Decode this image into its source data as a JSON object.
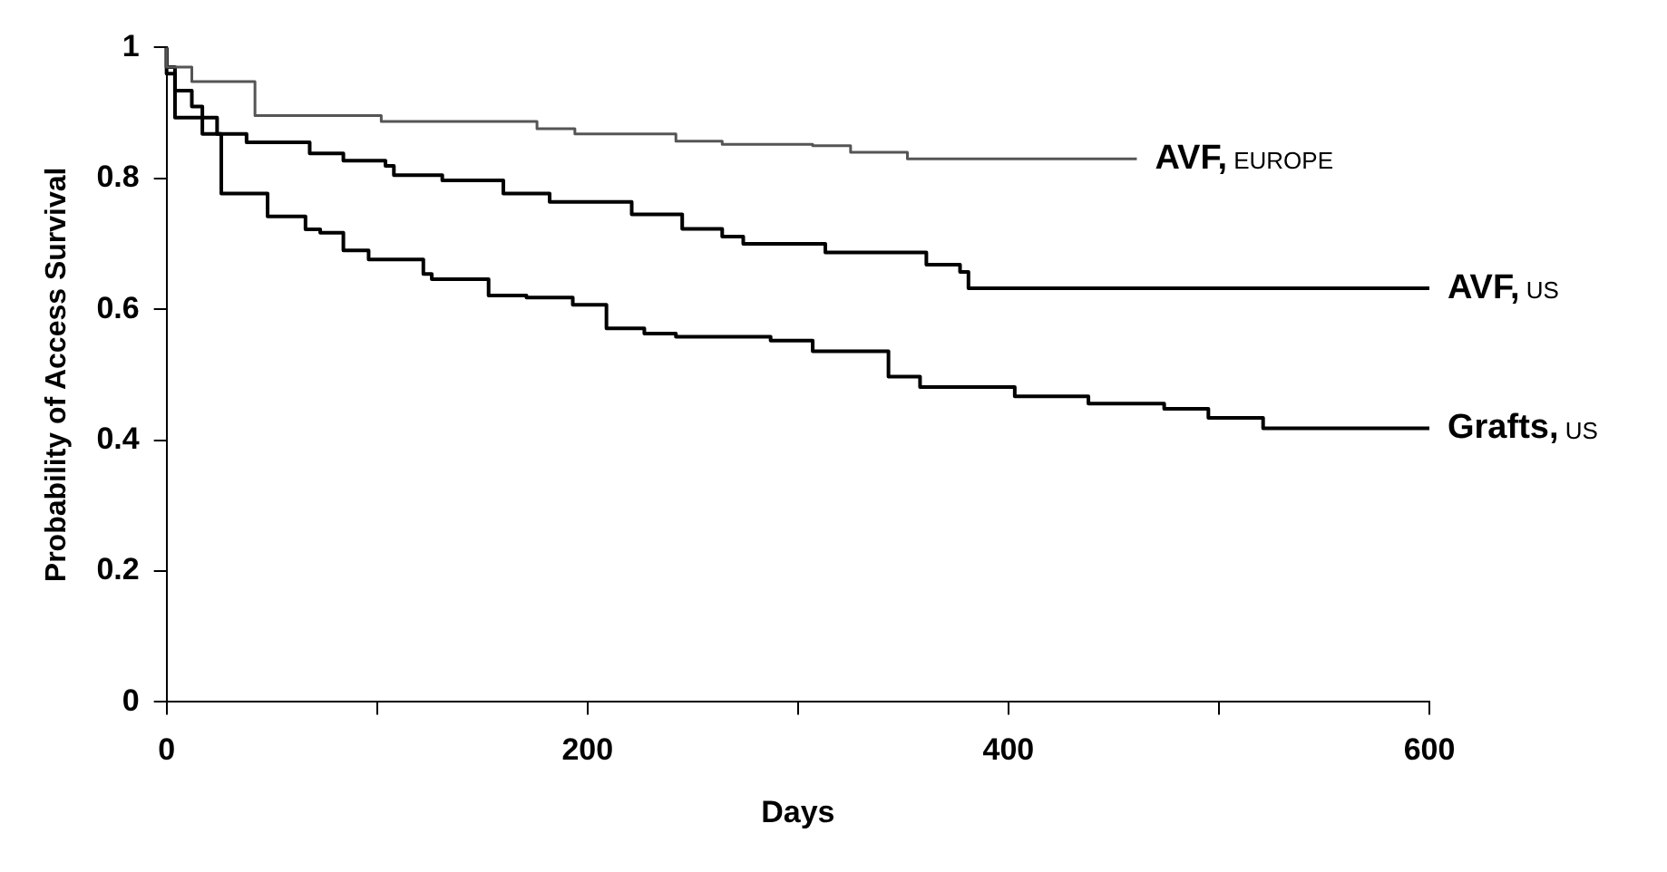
{
  "chart_data": {
    "type": "step",
    "xlabel": "Days",
    "ylabel": "Probability of Access Survival",
    "xlim": [
      0,
      600
    ],
    "xticks": [
      0,
      {
        "value": 100,
        "label": null
      },
      200,
      {
        "value": 300,
        "label": null
      },
      400,
      {
        "value": 500,
        "label": null
      },
      600
    ],
    "ylim": [
      0,
      1
    ],
    "yticks": [
      0,
      0.2,
      0.4,
      0.6,
      0.8,
      1
    ],
    "grid": false,
    "legend": false,
    "series": [
      {
        "name": "AVF, EUROPE",
        "color": "#555555",
        "x": [
          0,
          12,
          42,
          102,
          176,
          194,
          242,
          264,
          307,
          325,
          352,
          367,
          461
        ],
        "values": [
          1,
          0.97,
          0.948,
          0.896,
          0.887,
          0.876,
          0.868,
          0.857,
          0.852,
          0.85,
          0.84,
          0.83,
          0.83
        ]
      },
      {
        "name": "AVF, US",
        "color": "#000000",
        "x": [
          0,
          4,
          24,
          38,
          68,
          84,
          104,
          108,
          131,
          160,
          182,
          221,
          245,
          264,
          274,
          313,
          361,
          377,
          381,
          542,
          600
        ],
        "values": [
          1,
          0.97,
          0.893,
          0.868,
          0.855,
          0.838,
          0.827,
          0.819,
          0.805,
          0.797,
          0.777,
          0.764,
          0.745,
          0.723,
          0.711,
          0.7,
          0.687,
          0.668,
          0.657,
          0.632,
          0.632
        ]
      },
      {
        "name": "Grafts, US",
        "color": "#000000",
        "x": [
          0,
          4,
          12,
          17,
          26,
          48,
          66,
          73,
          84,
          96,
          122,
          126,
          153,
          171,
          193,
          209,
          227,
          242,
          287,
          307,
          343,
          358,
          403,
          438,
          474,
          495,
          521,
          546,
          600
        ],
        "values": [
          1,
          0.96,
          0.934,
          0.91,
          0.868,
          0.777,
          0.742,
          0.722,
          0.717,
          0.69,
          0.676,
          0.654,
          0.646,
          0.621,
          0.618,
          0.607,
          0.571,
          0.563,
          0.558,
          0.552,
          0.536,
          0.497,
          0.481,
          0.467,
          0.456,
          0.448,
          0.434,
          0.418,
          0.418
        ]
      }
    ]
  }
}
